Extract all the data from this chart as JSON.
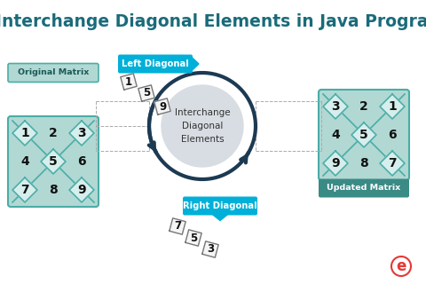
{
  "title": "Interchange Diagonal Elements in Java Program",
  "title_color": "#1a6b7a",
  "title_fontsize": 13.5,
  "bg_color": "#ffffff",
  "orig_matrix_label": "Original Matrix",
  "updated_matrix_label": "Updated Matrix",
  "left_diag_label": "Left Diagonal",
  "right_diag_label": "Right Diagonal",
  "center_label": "Interchange\nDiagonal\nElements",
  "orig_matrix": [
    [
      1,
      2,
      3
    ],
    [
      4,
      5,
      6
    ],
    [
      7,
      8,
      9
    ]
  ],
  "upd_matrix": [
    [
      3,
      2,
      1
    ],
    [
      4,
      5,
      6
    ],
    [
      9,
      8,
      7
    ]
  ],
  "left_diag": [
    "1",
    "5",
    "9"
  ],
  "right_diag": [
    "7",
    "5",
    "3"
  ],
  "matrix_bg": "#b2d8d4",
  "matrix_border": "#4aada6",
  "diamond_fill": "#d6eeec",
  "diamond_edge": "#4aada6",
  "label_box_color": "#00b0d8",
  "label_text_color": "#ffffff",
  "center_circle_color": "#d8dde3",
  "arrow_color": "#1c3a52",
  "tile_fill": "#f8f8f8",
  "tile_edge": "#888888",
  "dashed_line_color": "#aaaaaa",
  "orig_label_bg": "#b2d8d4",
  "orig_label_border": "#4aada6",
  "orig_label_text": "#1a5a55",
  "upd_label_bg": "#3a8a85",
  "upd_label_text": "#ffffff"
}
